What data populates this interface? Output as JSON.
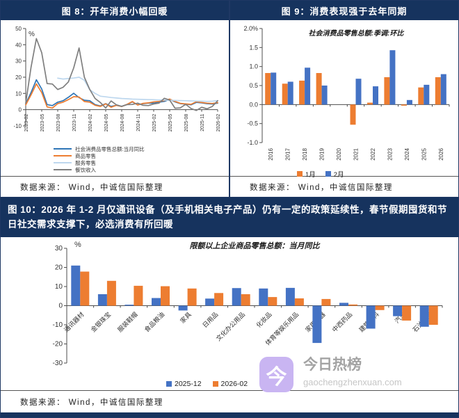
{
  "figure8": {
    "header": "图 8：开年消费小幅回暖",
    "source": "数据来源：  Wind，中诚信国际整理"
  },
  "figure9": {
    "header": "图 9：消费表现强于去年同期",
    "source": "数据来源：  Wind，中诚信国际整理"
  },
  "figure10": {
    "header": "图 10：2026 年 1-2 月仅通讯设备（及手机相关电子产品）仍有一定的政策延续性，春节假期囤货和节日社交需求支撑下，必选消费有所回暖",
    "source": "数据来源：  Wind，中诚信国际整理"
  },
  "watermark": {
    "badge_char": "今",
    "site_name": "今日热榜",
    "site_url": "gaochengzhenxuan.com",
    "badge_color": "#C9B5F2"
  },
  "colors": {
    "header_navy": "#16335E",
    "bar_blue": "#4472C4",
    "bar_orange": "#ED7D31",
    "line_blue": "#2E75B6",
    "line_orange": "#ED7D31",
    "line_lightblue": "#BDD7EE",
    "line_gray": "#7F7F7F"
  },
  "chart_data": [
    {
      "type": "line",
      "title": "",
      "unit_label": "%",
      "ylim": [
        -10,
        50
      ],
      "yticks": [
        -10,
        0,
        10,
        20,
        30,
        40,
        50
      ],
      "ytick_labels": [
        "-10",
        "0",
        "10",
        "20",
        "30",
        "40",
        "50"
      ],
      "xtick_every": 3,
      "legend_position": "bottom-left",
      "x": [
        "2023-02",
        "2023-03",
        "2023-04",
        "2023-05",
        "2023-06",
        "2023-07",
        "2023-08",
        "2023-09",
        "2023-10",
        "2023-11",
        "2023-12",
        "2024-01",
        "2024-02",
        "2024-03",
        "2024-04",
        "2024-05",
        "2024-06",
        "2024-07",
        "2024-08",
        "2024-09",
        "2024-10",
        "2024-11",
        "2024-12",
        "2025-01",
        "2025-02",
        "2025-03",
        "2025-04",
        "2025-05",
        "2025-06",
        "2025-07",
        "2025-08",
        "2025-09",
        "2025-10",
        "2025-11",
        "2025-12",
        "2026-01",
        "2026-02"
      ],
      "series": [
        {
          "name": "社会消费品零售总额:当月同比",
          "color": "#2E75B6",
          "values": [
            3.5,
            10.6,
            18.4,
            12.7,
            3.1,
            2.5,
            4.6,
            5.5,
            7.6,
            10.1,
            7.4,
            5.8,
            5.5,
            3.1,
            2.3,
            3.7,
            2.0,
            2.7,
            2.1,
            3.2,
            4.8,
            3.0,
            3.7,
            4.0,
            4.0,
            4.6,
            5.1,
            6.4,
            4.8,
            3.7,
            3.4,
            3.0,
            4.5,
            4.2,
            3.7,
            3.5,
            4.0
          ]
        },
        {
          "name": "商品零售",
          "color": "#ED7D31",
          "values": [
            2.9,
            9.1,
            15.9,
            10.5,
            1.7,
            1.0,
            3.7,
            4.6,
            6.2,
            8.0,
            7.8,
            5.0,
            4.6,
            2.7,
            2.0,
            3.6,
            1.5,
            2.7,
            1.9,
            3.3,
            5.0,
            2.8,
            3.9,
            4.2,
            4.8,
            5.1,
            5.6,
            6.5,
            5.1,
            3.9,
            3.6,
            3.3,
            4.9,
            4.4,
            4.0,
            3.8,
            4.3
          ]
        },
        {
          "name": "服务零售",
          "color": "#BDD7EE",
          "values": [
            null,
            null,
            null,
            null,
            null,
            null,
            19.4,
            18.9,
            19.2,
            19.5,
            20.0,
            18.1,
            12.3,
            10.0,
            8.3,
            7.9,
            7.5,
            7.2,
            6.9,
            6.7,
            6.5,
            6.4,
            6.3,
            6.2,
            6.1,
            6.0,
            5.9,
            5.8,
            5.7,
            5.6,
            5.5,
            5.4,
            5.3,
            5.2,
            5.1,
            5.2,
            5.6
          ]
        },
        {
          "name": "餐饮收入",
          "color": "#7F7F7F",
          "values": [
            4.0,
            26.3,
            43.8,
            35.1,
            16.1,
            15.8,
            12.4,
            13.8,
            17.1,
            25.8,
            38.0,
            20.0,
            12.5,
            6.9,
            4.4,
            1.0,
            5.4,
            3.0,
            2.0,
            3.1,
            3.2,
            4.0,
            2.7,
            2.5,
            3.5,
            4.0,
            7.0,
            5.9,
            0.9,
            1.1,
            3.3,
            0.7,
            -0.5,
            1.5,
            0.5,
            2.0,
            5.5
          ]
        }
      ]
    },
    {
      "type": "bar",
      "title": "社会消费品零售总额:季调:环比",
      "ylim": [
        -1.0,
        2.0
      ],
      "yticks": [
        -1.0,
        -0.5,
        0.0,
        0.5,
        1.0,
        1.5,
        2.0
      ],
      "ytick_labels": [
        "-1.0",
        "-0.5",
        "0.0",
        "0.5",
        "1.0",
        "1.5",
        "2.0%"
      ],
      "legend_position": "bottom-center",
      "categories": [
        "2016",
        "2017",
        "2018",
        "2019",
        "2020",
        "2021",
        "2022",
        "2023",
        "2024",
        "2025",
        "2026"
      ],
      "series": [
        {
          "name": "1月",
          "color": "#ED7D31",
          "values": [
            0.83,
            0.55,
            0.63,
            0.83,
            null,
            -0.53,
            0.05,
            0.72,
            -0.03,
            0.45,
            0.72
          ]
        },
        {
          "name": "2月",
          "color": "#4472C4",
          "values": [
            0.84,
            0.6,
            0.97,
            0.5,
            null,
            0.68,
            0.48,
            1.43,
            0.12,
            0.52,
            0.8
          ]
        }
      ]
    },
    {
      "type": "bar",
      "title": "限额以上企业商品零售总额：当月同比",
      "unit_label": "%",
      "ylim": [
        -30,
        30
      ],
      "yticks": [
        -30,
        -20,
        -10,
        0,
        10,
        20,
        30
      ],
      "ytick_labels": [
        "-30",
        "-20",
        "-10",
        "0",
        "10",
        "20",
        "30"
      ],
      "legend_position": "bottom-center",
      "categories": [
        "通讯器材",
        "金银珠宝",
        "服装鞋帽",
        "食品粮油",
        "家具",
        "日用品",
        "文化办公用品",
        "化妆品",
        "体育等娱乐用品",
        "家用电器",
        "中西药品",
        "建筑材料",
        "汽车",
        "石油制品"
      ],
      "series": [
        {
          "name": "2025-12",
          "color": "#4472C4",
          "values": [
            21,
            6,
            0.5,
            4,
            -2.5,
            3.7,
            9.2,
            9.0,
            9.3,
            -19.5,
            1.5,
            -12,
            -5.5,
            -11
          ]
        },
        {
          "name": "2026-02",
          "color": "#ED7D31",
          "values": [
            17.8,
            13,
            10.4,
            10.2,
            9.0,
            6.6,
            6.0,
            4.5,
            3.8,
            3.5,
            0.6,
            -2.3,
            -7.8,
            -10
          ]
        }
      ]
    }
  ]
}
